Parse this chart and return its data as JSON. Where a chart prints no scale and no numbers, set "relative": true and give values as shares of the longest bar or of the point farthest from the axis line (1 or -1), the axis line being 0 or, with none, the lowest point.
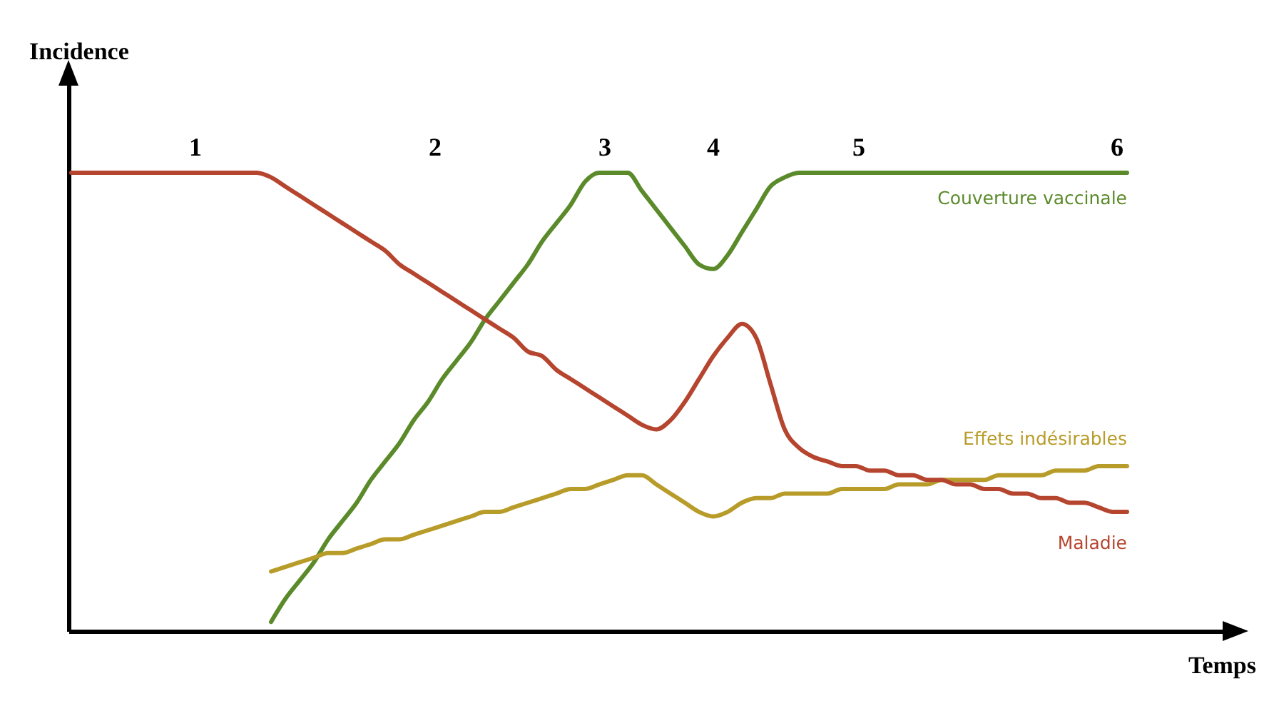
{
  "chart_data": {
    "type": "line",
    "relative": true,
    "xlabel": "Temps",
    "ylabel": "Incidence",
    "legend": false,
    "line_style": "solid",
    "marker": "none",
    "categories": [
      null,
      null,
      null,
      null,
      null,
      null,
      null,
      null,
      null,
      null,
      null,
      null,
      null,
      null,
      null,
      null,
      null,
      null,
      null,
      null,
      null,
      null,
      null,
      null,
      null,
      null,
      null,
      null,
      null,
      null,
      null,
      null,
      null,
      null,
      null,
      null,
      null,
      null,
      null,
      null,
      null,
      null,
      null,
      null,
      null,
      null,
      null,
      null,
      null,
      null,
      null,
      null,
      null,
      null,
      null,
      null,
      null,
      null,
      null,
      null,
      null,
      null,
      null,
      null,
      null,
      null,
      null,
      null,
      null,
      null,
      null,
      null,
      null,
      null,
      null
    ],
    "annotations": [
      "1",
      "2",
      "3",
      "4",
      "5",
      "6"
    ],
    "series": [
      {
        "name": "Couverture vaccinale",
        "color": "#5a8a2a",
        "values": [
          null,
          null,
          null,
          null,
          null,
          null,
          null,
          null,
          null,
          null,
          null,
          null,
          null,
          null,
          0.02,
          0.07,
          0.11,
          0.15,
          0.2,
          0.24,
          0.28,
          0.33,
          0.37,
          0.41,
          0.46,
          0.5,
          0.55,
          0.59,
          0.63,
          0.68,
          0.72,
          0.76,
          0.8,
          0.85,
          0.89,
          0.93,
          0.98,
          1.0,
          1.0,
          1.0,
          0.96,
          0.92,
          0.88,
          0.84,
          0.8,
          0.79,
          0.82,
          0.87,
          0.92,
          0.97,
          0.99,
          1.0,
          1.0,
          1.0,
          1.0,
          1.0,
          1.0,
          1.0,
          1.0,
          1.0,
          1.0,
          1.0,
          1.0,
          1.0,
          1.0,
          1.0,
          1.0,
          1.0,
          1.0,
          1.0,
          1.0,
          1.0,
          1.0,
          1.0,
          1.0
        ]
      },
      {
        "name": "Effets indésirables",
        "color": "#b89c2a",
        "values": [
          null,
          null,
          null,
          null,
          null,
          null,
          null,
          null,
          null,
          null,
          null,
          null,
          null,
          null,
          0.13,
          0.14,
          0.15,
          0.16,
          0.17,
          0.17,
          0.18,
          0.19,
          0.2,
          0.2,
          0.21,
          0.22,
          0.23,
          0.24,
          0.25,
          0.26,
          0.26,
          0.27,
          0.28,
          0.29,
          0.3,
          0.31,
          0.31,
          0.32,
          0.33,
          0.34,
          0.34,
          0.32,
          0.3,
          0.28,
          0.26,
          0.25,
          0.26,
          0.28,
          0.29,
          0.29,
          0.3,
          0.3,
          0.3,
          0.3,
          0.31,
          0.31,
          0.31,
          0.31,
          0.32,
          0.32,
          0.32,
          0.33,
          0.33,
          0.33,
          0.33,
          0.34,
          0.34,
          0.34,
          0.34,
          0.35,
          0.35,
          0.35,
          0.36,
          0.36,
          0.36
        ]
      },
      {
        "name": "Maladie",
        "color": "#b5452e",
        "values": [
          1.0,
          1.0,
          1.0,
          1.0,
          1.0,
          1.0,
          1.0,
          1.0,
          1.0,
          1.0,
          1.0,
          1.0,
          1.0,
          1.0,
          0.99,
          0.97,
          0.95,
          0.93,
          0.91,
          0.89,
          0.87,
          0.85,
          0.83,
          0.8,
          0.78,
          0.76,
          0.74,
          0.72,
          0.7,
          0.68,
          0.66,
          0.64,
          0.61,
          0.6,
          0.57,
          0.55,
          0.53,
          0.51,
          0.49,
          0.47,
          0.45,
          0.44,
          0.46,
          0.5,
          0.55,
          0.6,
          0.64,
          0.67,
          0.64,
          0.54,
          0.44,
          0.4,
          0.38,
          0.37,
          0.36,
          0.36,
          0.35,
          0.35,
          0.34,
          0.34,
          0.33,
          0.33,
          0.32,
          0.32,
          0.31,
          0.31,
          0.3,
          0.3,
          0.29,
          0.29,
          0.28,
          0.28,
          0.27,
          0.26,
          0.26
        ]
      }
    ]
  }
}
